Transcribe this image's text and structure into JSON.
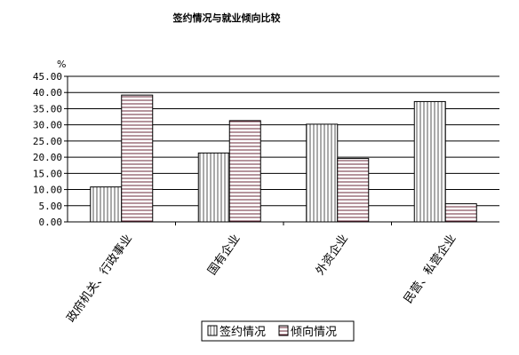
{
  "chart_data": {
    "type": "bar",
    "title": "签约情况与就业倾向比较",
    "ylabel": "%",
    "xlabel": "",
    "categories": [
      "政府机关、行政事业",
      "国有企业",
      "外资企业",
      "民营、私营企业"
    ],
    "series": [
      {
        "name": "签约情况",
        "values": [
          10.8,
          21.3,
          30.2,
          37.2
        ],
        "pattern": "vertical-stripes",
        "color": "#000000"
      },
      {
        "name": "倾向情况",
        "values": [
          39.2,
          31.3,
          19.6,
          5.6
        ],
        "pattern": "horizontal-stripes",
        "color": "#000000"
      }
    ],
    "ylim": [
      0,
      45
    ],
    "ytick_step": 5,
    "ytick_labels": [
      "0.00",
      "5.00",
      "10.00",
      "15.00",
      "20.00",
      "25.00",
      "30.00",
      "35.00",
      "40.00",
      "45.00"
    ],
    "grid": true,
    "legend_position": "bottom-center"
  }
}
